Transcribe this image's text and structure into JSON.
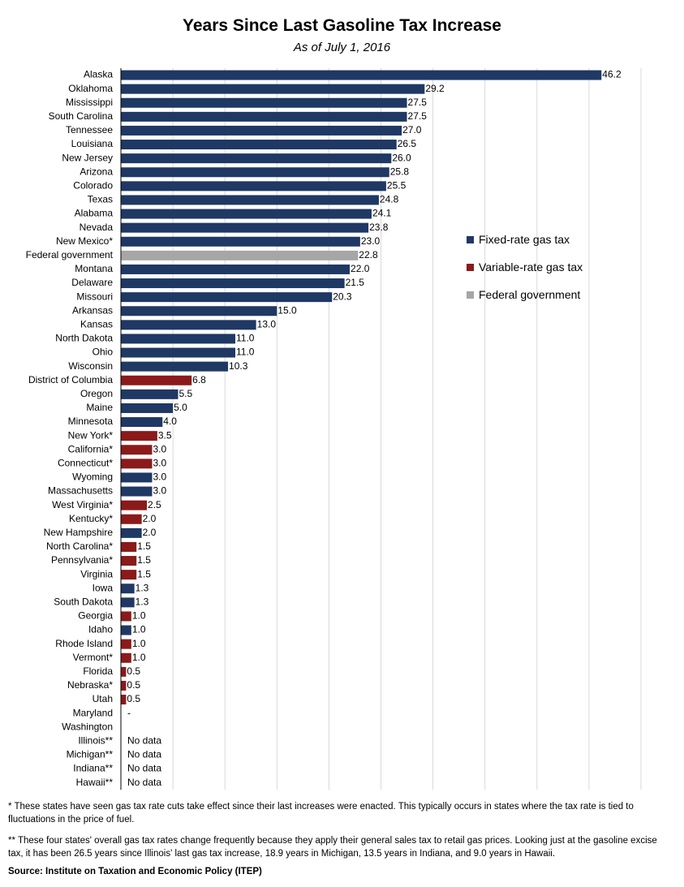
{
  "chart_data": {
    "type": "bar",
    "orientation": "horizontal",
    "title": "Years Since Last Gasoline Tax Increase",
    "subtitle": "As of July 1, 2016",
    "xlim": [
      0,
      50
    ],
    "grid": true,
    "legend_placement": "right",
    "legend": [
      {
        "name": "Fixed-rate gas tax",
        "color": "#1f3864"
      },
      {
        "name": "Variable-rate gas tax",
        "color": "#8b1a1a"
      },
      {
        "name": "Federal government",
        "color": "#a6a6a6"
      }
    ],
    "bars": [
      {
        "label": "Alaska",
        "value": 46.2,
        "text": "46.2",
        "series": 0
      },
      {
        "label": "Oklahoma",
        "value": 29.2,
        "text": "29.2",
        "series": 0
      },
      {
        "label": "Mississippi",
        "value": 27.5,
        "text": "27.5",
        "series": 0
      },
      {
        "label": "South Carolina",
        "value": 27.5,
        "text": "27.5",
        "series": 0
      },
      {
        "label": "Tennessee",
        "value": 27.0,
        "text": "27.0",
        "series": 0
      },
      {
        "label": "Louisiana",
        "value": 26.5,
        "text": "26.5",
        "series": 0
      },
      {
        "label": "New Jersey",
        "value": 26.0,
        "text": "26.0",
        "series": 0
      },
      {
        "label": "Arizona",
        "value": 25.8,
        "text": "25.8",
        "series": 0
      },
      {
        "label": "Colorado",
        "value": 25.5,
        "text": "25.5",
        "series": 0
      },
      {
        "label": "Texas",
        "value": 24.8,
        "text": "24.8",
        "series": 0
      },
      {
        "label": "Alabama",
        "value": 24.1,
        "text": "24.1",
        "series": 0
      },
      {
        "label": "Nevada",
        "value": 23.8,
        "text": "23.8",
        "series": 0
      },
      {
        "label": "New Mexico*",
        "value": 23.0,
        "text": "23.0",
        "series": 0
      },
      {
        "label": "Federal government",
        "value": 22.8,
        "text": "22.8",
        "series": 2
      },
      {
        "label": "Montana",
        "value": 22.0,
        "text": "22.0",
        "series": 0
      },
      {
        "label": "Delaware",
        "value": 21.5,
        "text": "21.5",
        "series": 0
      },
      {
        "label": "Missouri",
        "value": 20.3,
        "text": "20.3",
        "series": 0
      },
      {
        "label": "Arkansas",
        "value": 15.0,
        "text": "15.0",
        "series": 0
      },
      {
        "label": "Kansas",
        "value": 13.0,
        "text": "13.0",
        "series": 0
      },
      {
        "label": "North Dakota",
        "value": 11.0,
        "text": "11.0",
        "series": 0
      },
      {
        "label": "Ohio",
        "value": 11.0,
        "text": "11.0",
        "series": 0
      },
      {
        "label": "Wisconsin",
        "value": 10.3,
        "text": "10.3",
        "series": 0
      },
      {
        "label": "District of Columbia",
        "value": 6.8,
        "text": "6.8",
        "series": 1
      },
      {
        "label": "Oregon",
        "value": 5.5,
        "text": "5.5",
        "series": 0
      },
      {
        "label": "Maine",
        "value": 5.0,
        "text": "5.0",
        "series": 0
      },
      {
        "label": "Minnesota",
        "value": 4.0,
        "text": "4.0",
        "series": 0
      },
      {
        "label": "New York*",
        "value": 3.5,
        "text": "3.5",
        "series": 1
      },
      {
        "label": "California*",
        "value": 3.0,
        "text": "3.0",
        "series": 1
      },
      {
        "label": "Connecticut*",
        "value": 3.0,
        "text": "3.0",
        "series": 1
      },
      {
        "label": "Wyoming",
        "value": 3.0,
        "text": "3.0",
        "series": 0
      },
      {
        "label": "Massachusetts",
        "value": 3.0,
        "text": "3.0",
        "series": 0
      },
      {
        "label": "West Virginia*",
        "value": 2.5,
        "text": "2.5",
        "series": 1
      },
      {
        "label": "Kentucky*",
        "value": 2.0,
        "text": "2.0",
        "series": 1
      },
      {
        "label": "New Hampshire",
        "value": 2.0,
        "text": "2.0",
        "series": 0
      },
      {
        "label": "North Carolina*",
        "value": 1.5,
        "text": "1.5",
        "series": 1
      },
      {
        "label": "Pennsylvania*",
        "value": 1.5,
        "text": "1.5",
        "series": 1
      },
      {
        "label": "Virginia",
        "value": 1.5,
        "text": "1.5",
        "series": 1
      },
      {
        "label": "Iowa",
        "value": 1.3,
        "text": "1.3",
        "series": 0
      },
      {
        "label": "South Dakota",
        "value": 1.3,
        "text": "1.3",
        "series": 0
      },
      {
        "label": "Georgia",
        "value": 1.0,
        "text": "1.0",
        "series": 1
      },
      {
        "label": "Idaho",
        "value": 1.0,
        "text": "1.0",
        "series": 0
      },
      {
        "label": "Rhode Island",
        "value": 1.0,
        "text": "1.0",
        "series": 1
      },
      {
        "label": "Vermont*",
        "value": 1.0,
        "text": "1.0",
        "series": 1
      },
      {
        "label": "Florida",
        "value": 0.5,
        "text": "0.5",
        "series": 1
      },
      {
        "label": "Nebraska*",
        "value": 0.5,
        "text": "0.5",
        "series": 1
      },
      {
        "label": "Utah",
        "value": 0.5,
        "text": "0.5",
        "series": 1
      },
      {
        "label": "Maryland",
        "value": 0,
        "text": "-",
        "series": 1
      },
      {
        "label": "Washington",
        "value": 0,
        "text": "",
        "series": 0
      },
      {
        "label": "Illinois**",
        "value": 0,
        "text": "No data",
        "series": 0
      },
      {
        "label": "Michigan**",
        "value": 0,
        "text": "No data",
        "series": 0
      },
      {
        "label": "Indiana**",
        "value": 0,
        "text": "No data",
        "series": 0
      },
      {
        "label": "Hawaii**",
        "value": 0,
        "text": "No data",
        "series": 0
      }
    ]
  },
  "notes": {
    "note1": "* These states have seen gas tax rate cuts take effect since their last increases were enacted. This typically occurs in states where the tax rate is tied to fluctuations in the price of fuel.",
    "note2": "** These four states' overall gas tax rates change frequently because they apply their general sales tax to retail gas prices. Looking just at the gasoline excise tax, it has been 26.5 years since Illinois' last gas tax increase, 18.9 years in Michigan, 13.5 years in Indiana, and 9.0 years in Hawaii.",
    "source": "Source: Institute on Taxation and Economic Policy (ITEP)"
  }
}
